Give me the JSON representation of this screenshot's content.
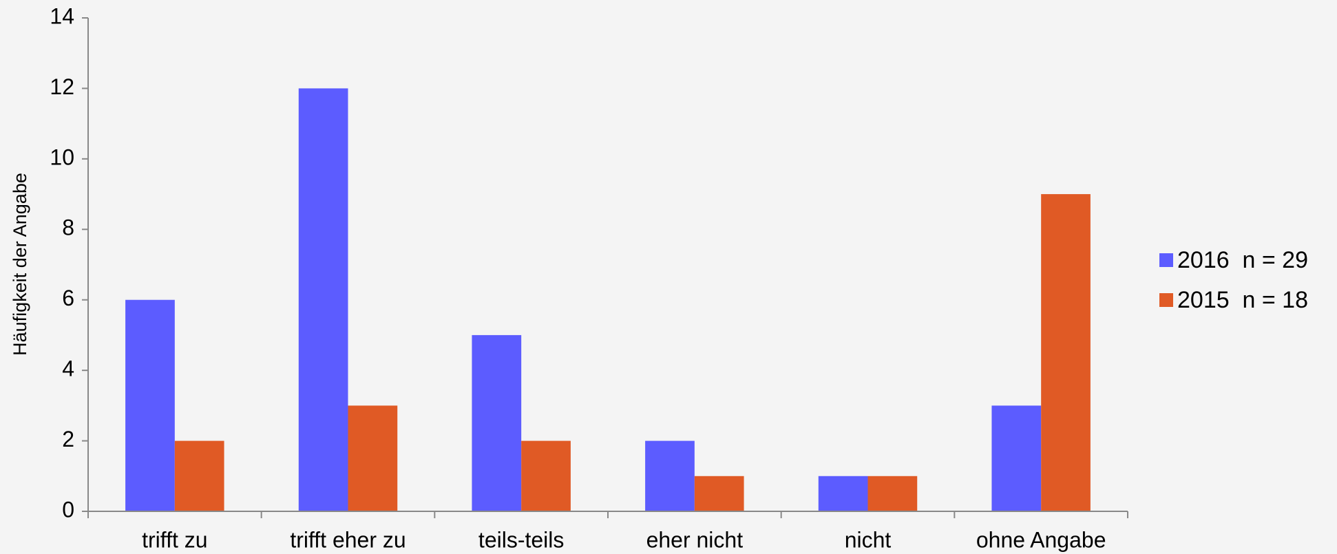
{
  "chart_data": {
    "type": "bar",
    "y_label": "Häufigkeit der Angabe",
    "categories": [
      "trifft zu",
      "trifft eher zu",
      "teils-teils",
      "eher nicht",
      "nicht",
      "ohne Angabe"
    ],
    "series": [
      {
        "name": "2016  n = 29",
        "color": "#5c5cff",
        "values": [
          6,
          12,
          5,
          2,
          1,
          3
        ]
      },
      {
        "name": "2015  n = 18",
        "color": "#e05a25",
        "values": [
          2,
          3,
          2,
          1,
          1,
          9
        ]
      }
    ],
    "ylim": [
      0,
      14
    ],
    "yticks": [
      0,
      2,
      4,
      6,
      8,
      10,
      12,
      14
    ],
    "grid": false,
    "legend": "right"
  }
}
